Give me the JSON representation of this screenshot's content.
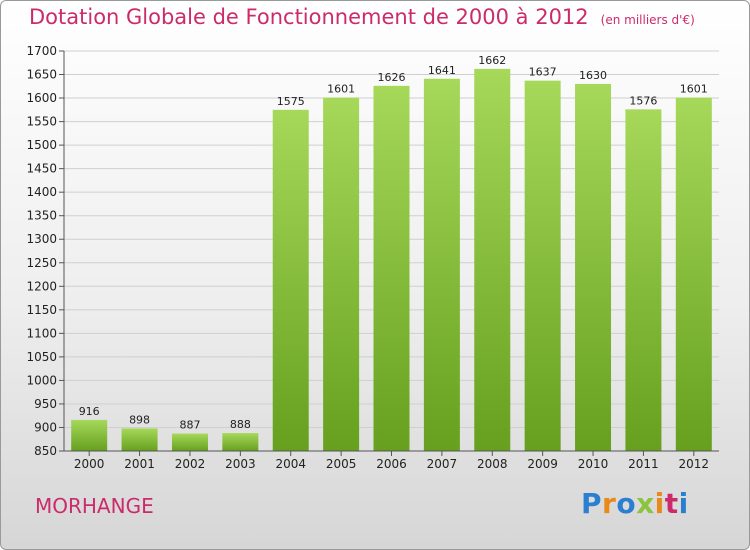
{
  "title": "Dotation Globale de Fonctionnement de 2000 à 2012",
  "unit": "(en milliers d'€)",
  "commune": "MORHANGE",
  "logo": {
    "letters": [
      "P",
      "r",
      "o",
      "x",
      "i",
      "t",
      "i"
    ],
    "colors": [
      "#2b7fd0",
      "#e8891a",
      "#2b7fd0",
      "#8bc43f",
      "#e8891a",
      "#cc2b6a",
      "#2b7fd0"
    ]
  },
  "colors": {
    "bar_light": "#a6d85a",
    "bar_dark": "#66a01e",
    "title": "#cc2b6a"
  },
  "chart_data": {
    "type": "bar",
    "categories": [
      "2000",
      "2001",
      "2002",
      "2003",
      "2004",
      "2005",
      "2006",
      "2007",
      "2008",
      "2009",
      "2010",
      "2011",
      "2012"
    ],
    "values": [
      916,
      898,
      887,
      888,
      1575,
      1601,
      1626,
      1641,
      1662,
      1637,
      1630,
      1576,
      1601
    ],
    "ylim": [
      850,
      1700
    ],
    "yticks": [
      850,
      900,
      950,
      1000,
      1050,
      1100,
      1150,
      1200,
      1250,
      1300,
      1350,
      1400,
      1450,
      1500,
      1550,
      1600,
      1650,
      1700
    ],
    "grid": true
  }
}
